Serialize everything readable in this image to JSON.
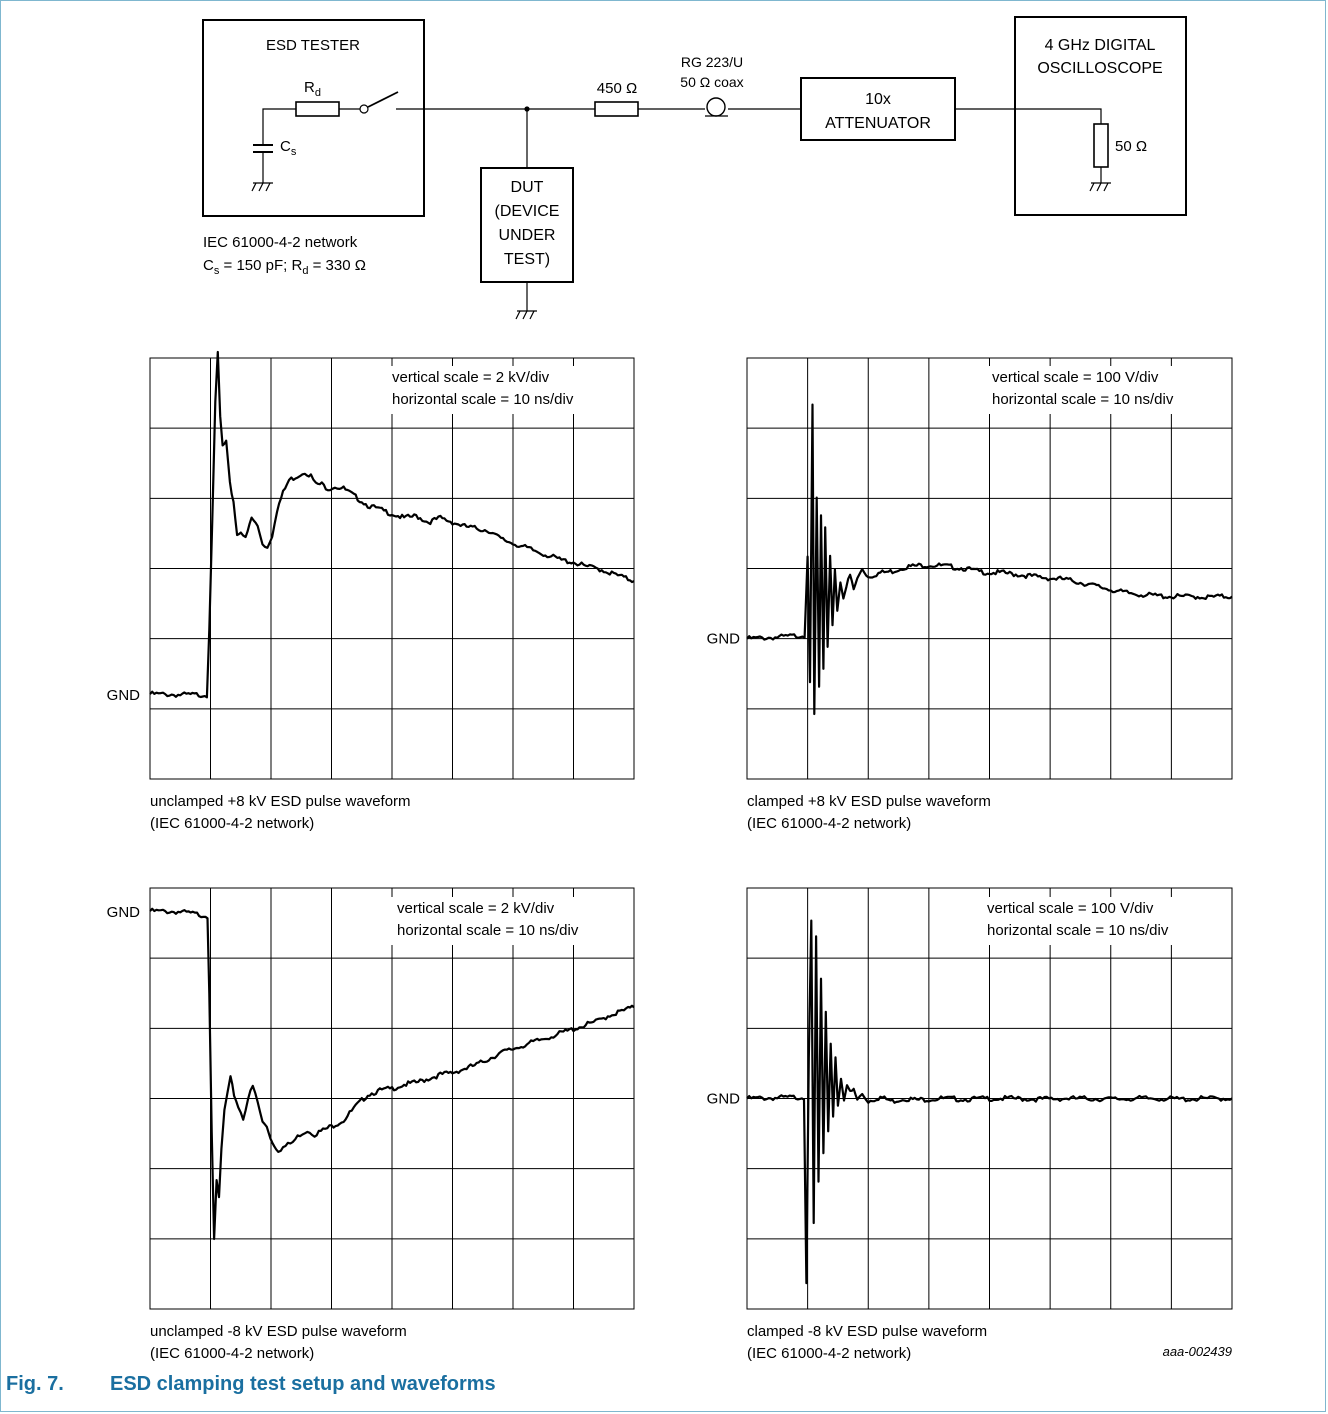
{
  "schematic": {
    "esd_tester_label": "ESD TESTER",
    "rd_label": "R",
    "rd_sub": "d",
    "cs_label": "C",
    "cs_sub": "s",
    "network_line1": "IEC 61000-4-2 network",
    "network_line2_parts": [
      "C",
      "s",
      " = 150 pF; R",
      "d",
      " = 330 Ω"
    ],
    "dut_lines": [
      "DUT",
      "(DEVICE",
      "UNDER",
      "TEST)"
    ],
    "resistor_450": "450 Ω",
    "coax_line1": "RG 223/U",
    "coax_line2": "50 Ω coax",
    "attenuator_lines": [
      "10x",
      "ATTENUATOR"
    ],
    "scope_lines": [
      "4 GHz DIGITAL",
      "OSCILLOSCOPE"
    ],
    "scope_resistor": "50 Ω"
  },
  "chart_data": [
    {
      "type": "line",
      "id": "unclamped-pos",
      "scale_line1": "vertical scale = 2 kV/div",
      "scale_line2": "horizontal scale = 10 ns/div",
      "gnd_label": "GND",
      "caption_line1": "unclamped +8 kV ESD pulse waveform",
      "caption_line2": "(IEC 61000-4-2 network)",
      "x_unit": "ns",
      "y_unit": "kV",
      "xlim": [
        0,
        80
      ],
      "ylim": [
        -2,
        8
      ],
      "gnd_value": 0,
      "x": [
        0,
        5,
        9.4,
        9.8,
        10.3,
        10.8,
        11.2,
        11.6,
        12.0,
        12.6,
        13.2,
        13.8,
        14.4,
        15.0,
        15.8,
        16.8,
        17.8,
        18.6,
        19.4,
        20.2,
        21.0,
        22.0,
        23.0,
        24.4,
        25.6,
        26.6,
        27.4,
        28.4,
        29.4,
        30.6,
        32.0,
        34.0,
        36.0,
        38.0,
        40.0,
        42.0,
        44.0,
        46.0,
        48.0,
        50.0,
        52.0,
        54.0,
        56.0,
        58.0,
        60.0,
        62.0,
        64.0,
        66.0,
        68.0,
        70.0,
        72.0,
        74.0,
        76.0,
        78.0,
        80.0
      ],
      "y": [
        0.02,
        0.0,
        0.0,
        1.6,
        4.2,
        6.9,
        8.1,
        6.6,
        5.9,
        6.0,
        5.0,
        4.6,
        3.8,
        3.9,
        3.7,
        4.2,
        4.0,
        3.6,
        3.5,
        3.8,
        4.4,
        4.8,
        5.1,
        5.2,
        5.3,
        5.2,
        5.0,
        5.0,
        4.9,
        4.95,
        4.9,
        4.7,
        4.5,
        4.4,
        4.3,
        4.2,
        4.25,
        4.1,
        4.2,
        4.1,
        4.0,
        3.95,
        3.9,
        3.7,
        3.6,
        3.5,
        3.4,
        3.3,
        3.2,
        3.15,
        3.05,
        3.0,
        2.9,
        2.8,
        2.7
      ]
    },
    {
      "type": "line",
      "id": "clamped-pos",
      "scale_line1": "vertical scale = 100 V/div",
      "scale_line2": "horizontal scale = 10 ns/div",
      "gnd_label": "GND",
      "caption_line1": "clamped +8 kV ESD pulse waveform",
      "caption_line2": "(IEC 61000-4-2 network)",
      "x_unit": "ns",
      "y_unit": "V",
      "xlim": [
        0,
        80
      ],
      "ylim": [
        -200,
        400
      ],
      "gnd_value": 0,
      "x": [
        0,
        5,
        9.5,
        10.0,
        10.4,
        10.8,
        11.1,
        11.5,
        11.9,
        12.2,
        12.6,
        12.9,
        13.3,
        13.7,
        14.1,
        14.5,
        14.9,
        15.4,
        15.9,
        16.4,
        17.0,
        17.6,
        18.2,
        19.0,
        20.0,
        22.0,
        24.0,
        26.0,
        28.0,
        30.0,
        32.0,
        34.0,
        36.0,
        38.0,
        40.0,
        42.0,
        44.0,
        46.0,
        48.0,
        50.0,
        52.0,
        54.0,
        56.0,
        58.0,
        60.0,
        62.0,
        64.0,
        66.0,
        68.0,
        70.0,
        72.0,
        74.0,
        76.0,
        78.0,
        80.0
      ],
      "y": [
        0,
        2,
        5,
        120,
        -60,
        330,
        -110,
        200,
        -70,
        175,
        -45,
        155,
        -15,
        120,
        20,
        100,
        40,
        82,
        60,
        75,
        90,
        70,
        85,
        100,
        88,
        94,
        96,
        102,
        104,
        105,
        104,
        102,
        100,
        96,
        94,
        94,
        92,
        90,
        88,
        86,
        85,
        82,
        78,
        74,
        70,
        66,
        64,
        62,
        61,
        60,
        60,
        60,
        59,
        60,
        60
      ]
    },
    {
      "type": "line",
      "id": "unclamped-neg",
      "scale_line1": "vertical scale = 2 kV/div",
      "scale_line2": "horizontal scale = 10 ns/div",
      "gnd_label": "GND",
      "caption_line1": "unclamped -8 kV ESD pulse waveform",
      "caption_line2": "(IEC 61000-4-2 network)",
      "x_unit": "ns",
      "y_unit": "kV",
      "xlim": [
        0,
        80
      ],
      "ylim": [
        -10,
        0.6
      ],
      "gnd_value": 0,
      "x": [
        0,
        5,
        9.5,
        9.8,
        10.2,
        10.6,
        11.0,
        11.4,
        11.8,
        12.3,
        12.8,
        13.3,
        13.9,
        14.6,
        15.4,
        16.2,
        17.0,
        17.8,
        18.6,
        19.3,
        20.2,
        21.2,
        22.4,
        23.6,
        24.8,
        26.0,
        27.2,
        28.6,
        30.0,
        32.0,
        34.0,
        36.0,
        38.0,
        40.0,
        42.0,
        44.0,
        46.0,
        48.0,
        50.0,
        52.0,
        54.0,
        56.0,
        58.0,
        60.0,
        62.0,
        64.0,
        66.0,
        68.0,
        70.0,
        72.0,
        74.0,
        76.0,
        78.0,
        80.0
      ],
      "y": [
        0.02,
        0.0,
        -0.1,
        -2.0,
        -5.5,
        -8.3,
        -6.8,
        -7.2,
        -6.0,
        -5.0,
        -4.6,
        -4.2,
        -4.6,
        -4.9,
        -5.2,
        -4.7,
        -4.4,
        -4.8,
        -5.3,
        -5.4,
        -5.8,
        -6.0,
        -5.9,
        -5.8,
        -5.6,
        -5.5,
        -5.6,
        -5.5,
        -5.4,
        -5.25,
        -4.9,
        -4.6,
        -4.5,
        -4.45,
        -4.35,
        -4.3,
        -4.2,
        -4.1,
        -4.05,
        -3.95,
        -3.85,
        -3.7,
        -3.55,
        -3.45,
        -3.35,
        -3.25,
        -3.15,
        -3.05,
        -2.95,
        -2.85,
        -2.75,
        -2.6,
        -2.5,
        -2.4
      ]
    },
    {
      "type": "line",
      "id": "clamped-neg",
      "scale_line1": "vertical scale = 100 V/div",
      "scale_line2": "horizontal scale = 10 ns/div",
      "gnd_label": "GND",
      "caption_line1": "clamped -8 kV ESD pulse waveform",
      "caption_line2": "(IEC 61000-4-2 network)",
      "x_unit": "ns",
      "y_unit": "V",
      "xlim": [
        0,
        80
      ],
      "ylim": [
        -300,
        300
      ],
      "gnd_value": 0,
      "x": [
        0,
        5,
        9.4,
        9.8,
        10.2,
        10.6,
        11.0,
        11.4,
        11.8,
        12.2,
        12.6,
        13.0,
        13.4,
        13.8,
        14.2,
        14.6,
        15.0,
        15.5,
        16.0,
        16.5,
        17.0,
        17.6,
        18.2,
        19.0,
        20.0,
        22.0,
        24.0,
        26.0,
        28.0,
        30.0,
        32.0,
        36.0,
        40.0,
        44.0,
        48.0,
        52.0,
        56.0,
        60.0,
        64.0,
        68.0,
        72.0,
        76.0,
        80.0
      ],
      "y": [
        0,
        1,
        2,
        -260,
        60,
        250,
        -180,
        230,
        -120,
        170,
        -80,
        120,
        -50,
        80,
        -25,
        60,
        -10,
        30,
        0,
        20,
        8,
        12,
        -2,
        6,
        -4,
        2,
        -4,
        0,
        -2,
        -1,
        0,
        -1,
        0,
        0,
        -1,
        0,
        0,
        -1,
        0,
        0,
        -1,
        0,
        0
      ]
    }
  ],
  "figure_id": "aaa-002439",
  "caption": {
    "number": "Fig. 7.",
    "title": "ESD clamping test setup and waveforms"
  }
}
